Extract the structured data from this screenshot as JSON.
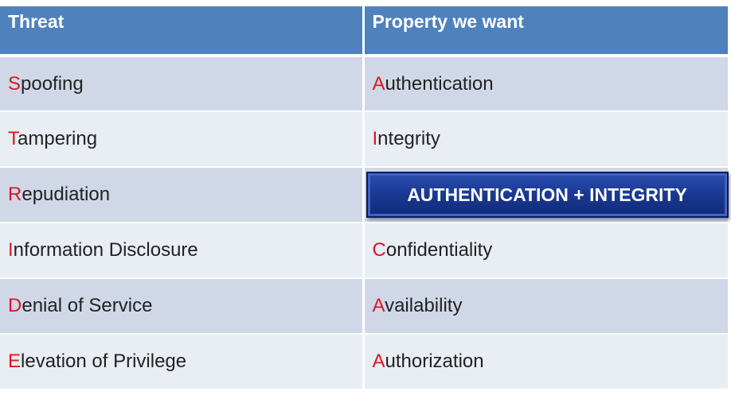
{
  "table": {
    "headers": [
      "Threat",
      "Property we want"
    ],
    "rows": [
      {
        "threat_first": "S",
        "threat_rest": "poofing",
        "property_first": "A",
        "property_rest": "uthentication"
      },
      {
        "threat_first": "T",
        "threat_rest": "ampering",
        "property_first": "I",
        "property_rest": "ntegrity"
      },
      {
        "threat_first": "R",
        "threat_rest": "epudiation",
        "property_highlight": "AUTHENTICATION + INTEGRITY"
      },
      {
        "threat_first": "I",
        "threat_rest": "nformation Disclosure",
        "property_first": "C",
        "property_rest": "onfidentiality"
      },
      {
        "threat_first": "D",
        "threat_rest": "enial of Service",
        "property_first": "A",
        "property_rest": "vailability"
      },
      {
        "threat_first": "E",
        "threat_rest": "levation of Privilege",
        "property_first": "A",
        "property_rest": "uthorization"
      }
    ]
  },
  "colors": {
    "header_bg": "#4f81bd",
    "row_dark": "#d0d8e8",
    "row_light": "#e9edf4",
    "initial_letter": "#d71920",
    "highlight_box": "#1a3a94"
  }
}
